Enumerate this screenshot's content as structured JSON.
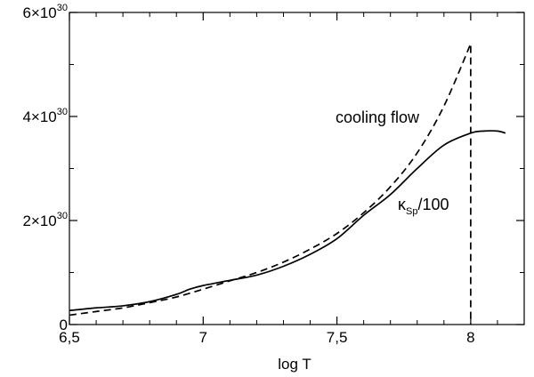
{
  "chart_data": {
    "type": "line",
    "xlabel": "log  T",
    "ylabel": "",
    "xlim": [
      6.5,
      8.2
    ],
    "ylim": [
      0,
      6e+30
    ],
    "x_ticks": [
      {
        "value": 6.5,
        "label": "6,5"
      },
      {
        "value": 7.0,
        "label": "7"
      },
      {
        "value": 7.5,
        "label": "7,5"
      },
      {
        "value": 8.0,
        "label": "8"
      }
    ],
    "y_ticks": [
      {
        "value": 0,
        "mantissa": "0",
        "exponent": ""
      },
      {
        "value": 2e+30,
        "mantissa": "2×10",
        "exponent": "30"
      },
      {
        "value": 4e+30,
        "mantissa": "4×10",
        "exponent": "30"
      },
      {
        "value": 6e+30,
        "mantissa": "6×10",
        "exponent": "30"
      }
    ],
    "series": [
      {
        "name": "cooling flow",
        "style": "dashed",
        "x": [
          6.5,
          6.6,
          6.7,
          6.8,
          6.9,
          7.0,
          7.1,
          7.2,
          7.3,
          7.4,
          7.5,
          7.6,
          7.7,
          7.8,
          7.9,
          8.0,
          8.0
        ],
        "y": [
          1.8e+29,
          2.5e+29,
          3.2e+29,
          4.2e+29,
          5.3e+29,
          6.8e+29,
          8.4e+29,
          1e+30,
          1.2e+30,
          1.45e+30,
          1.75e+30,
          2.15e+30,
          2.65e+30,
          3.3e+30,
          4.2e+30,
          5.4e+30,
          0
        ]
      },
      {
        "name": "κSp/100",
        "style": "solid",
        "x": [
          6.5,
          6.6,
          6.7,
          6.8,
          6.9,
          6.95,
          7.0,
          7.1,
          7.2,
          7.3,
          7.4,
          7.5,
          7.6,
          7.7,
          7.8,
          7.9,
          8.0,
          8.05,
          8.1,
          8.13
        ],
        "y": [
          2.7e+29,
          3.2e+29,
          3.6e+29,
          4.4e+29,
          5.8e+29,
          6.8e+29,
          7.5e+29,
          8.5e+29,
          9.5e+29,
          1.12e+30,
          1.35e+30,
          1.65e+30,
          2.1e+30,
          2.5e+30,
          3e+30,
          3.45e+30,
          3.68e+30,
          3.72e+30,
          3.72e+30,
          3.68e+30
        ]
      }
    ],
    "annotations": [
      {
        "text": "cooling flow",
        "series": 0
      },
      {
        "main": "κ",
        "sub": "Sp",
        "rest": "/100",
        "series": 1
      }
    ],
    "grid": false,
    "legend": "none"
  }
}
